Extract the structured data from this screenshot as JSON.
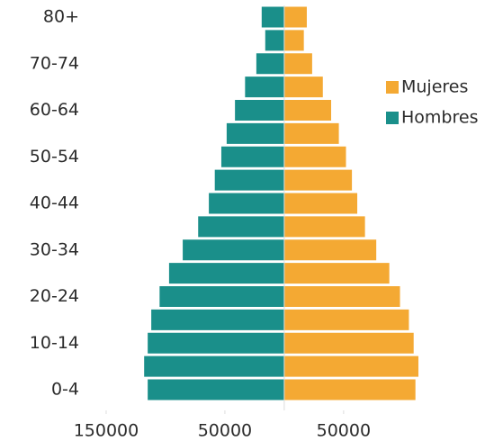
{
  "chart_data": {
    "type": "pyramid",
    "categories": [
      "80+",
      null,
      "70-74",
      null,
      "60-64",
      null,
      "50-54",
      null,
      "40-44",
      null,
      "30-34",
      null,
      "20-24",
      null,
      "10-14",
      null,
      "0-4"
    ],
    "series": [
      {
        "name": "Mujeres",
        "color": "#f4a933",
        "side": "right",
        "values": [
          19000,
          16500,
          23500,
          32500,
          39500,
          46000,
          52000,
          57000,
          61500,
          68000,
          77500,
          88500,
          97500,
          105000,
          109000,
          113000,
          110500
        ]
      },
      {
        "name": "Hombres",
        "color": "#1a8f8a",
        "side": "left",
        "values": [
          19000,
          16000,
          23500,
          33000,
          41500,
          48500,
          53000,
          58500,
          63500,
          72500,
          85500,
          97000,
          105000,
          112000,
          115000,
          118000,
          115000
        ]
      }
    ],
    "xlim": [
      -200000,
      160000
    ],
    "xticks": [
      {
        "value": -150000,
        "label": "150000"
      },
      {
        "value": -50000,
        "label": "50000"
      },
      {
        "value": 50000,
        "label": "50000"
      }
    ]
  }
}
